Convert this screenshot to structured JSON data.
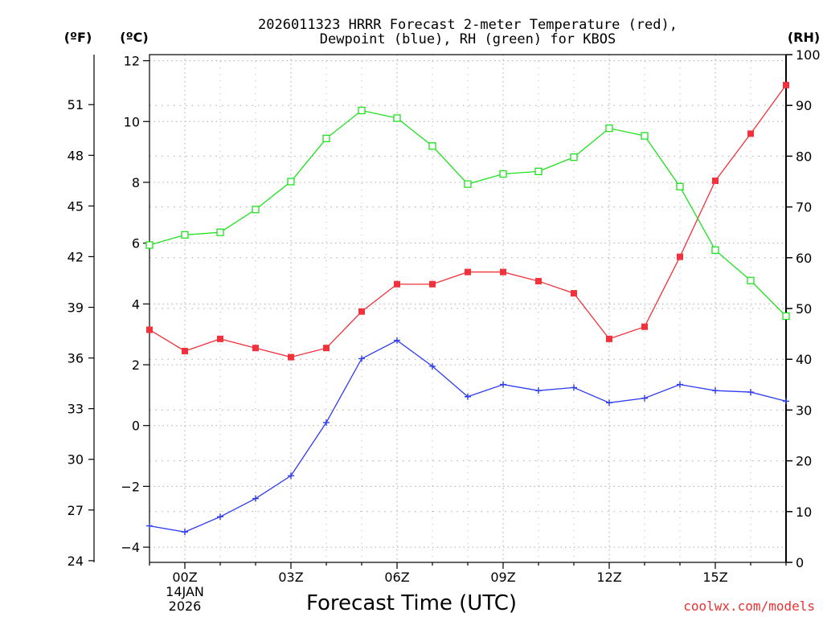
{
  "colors": {
    "temperature": "#f0323c",
    "dewpoint": "#2d3cf0",
    "rh": "#1ee11e",
    "grid": "#aaaaaa",
    "credit": "#e63232",
    "axis": "#000000"
  },
  "chart_data": {
    "type": "line",
    "title": [
      "2026011323 HRRR Forecast 2-meter Temperature (red),",
      "Dewpoint (blue), RH (green) for KBOS"
    ],
    "xlabel": "Forecast Time (UTC)",
    "date_label": [
      "14JAN",
      "2026"
    ],
    "credit": "coolwx.com/models",
    "units": {
      "fahrenheit": "(ºF)",
      "celsius": "(ºC)",
      "rh": "(RH)"
    },
    "x": [
      -1,
      0,
      1,
      2,
      3,
      4,
      5,
      6,
      7,
      8,
      9,
      10,
      11,
      12,
      13,
      14,
      15,
      16,
      17
    ],
    "xlim": [
      -1,
      17
    ],
    "x_ticks": [
      0,
      3,
      6,
      9,
      12,
      15
    ],
    "x_tick_labels": [
      "00Z",
      "03Z",
      "06Z",
      "09Z",
      "12Z",
      "15Z"
    ],
    "celsius_axis": {
      "lim": [
        -4.5,
        12.2
      ],
      "ticks": [
        -4,
        -2,
        0,
        2,
        4,
        6,
        8,
        10,
        12
      ],
      "tick_labels": [
        "−4",
        "−2",
        "0",
        "2",
        "4",
        "6",
        "8",
        "10",
        "12"
      ]
    },
    "fahrenheit_axis": {
      "ticks": [
        24,
        27,
        30,
        33,
        36,
        39,
        42,
        45,
        48,
        51
      ],
      "tick_labels": [
        "24",
        "27",
        "30",
        "33",
        "36",
        "39",
        "42",
        "45",
        "48",
        "51"
      ]
    },
    "rh_axis": {
      "lim": [
        0,
        100
      ],
      "ticks": [
        0,
        10,
        20,
        30,
        40,
        50,
        60,
        70,
        80,
        90,
        100
      ],
      "tick_labels": [
        "0",
        "10",
        "20",
        "30",
        "40",
        "50",
        "60",
        "70",
        "80",
        "90",
        "100"
      ]
    },
    "series": [
      {
        "name": "Temperature",
        "axis": "celsius",
        "marker": "filled-square",
        "values": [
          3.15,
          2.45,
          2.85,
          2.55,
          2.25,
          2.55,
          3.75,
          4.65,
          4.65,
          5.05,
          5.05,
          4.75,
          4.35,
          2.85,
          3.25,
          5.55,
          8.05,
          9.6,
          11.2
        ]
      },
      {
        "name": "Dewpoint",
        "axis": "celsius",
        "marker": "plus",
        "values": [
          -3.3,
          -3.5,
          -3.0,
          -2.4,
          -1.65,
          0.1,
          2.2,
          2.8,
          1.95,
          0.95,
          1.35,
          1.15,
          1.25,
          0.75,
          0.9,
          1.35,
          1.15,
          1.1,
          0.8
        ]
      },
      {
        "name": "RH",
        "axis": "rh",
        "marker": "open-square",
        "values": [
          62.5,
          64.5,
          65.0,
          69.5,
          75.0,
          83.5,
          89.0,
          87.5,
          82.0,
          74.5,
          76.5,
          77.0,
          79.8,
          85.5,
          84.0,
          74.0,
          61.5,
          55.5,
          48.5
        ]
      }
    ]
  }
}
